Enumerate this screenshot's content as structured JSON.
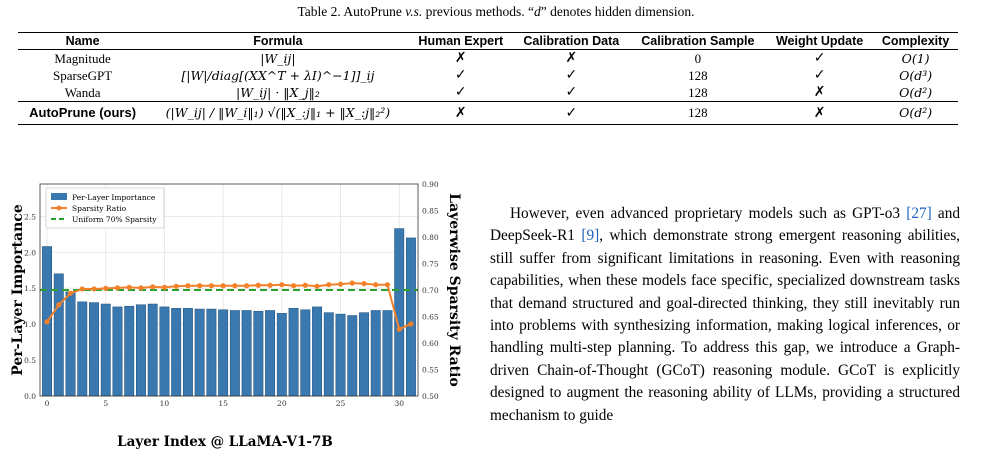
{
  "caption": {
    "label": "Table 2. AutoPrune ",
    "italic": "v.s.",
    "rest": " previous methods. “",
    "d": "d",
    "end": "” denotes hidden dimension."
  },
  "table": {
    "headers": [
      "Name",
      "Formula",
      "Human Expert",
      "Calibration Data",
      "Calibration Sample",
      "Weight Update",
      "Complexity"
    ],
    "rows": [
      {
        "name": "Magnitude",
        "formula": "|W_ij|",
        "human": "✗",
        "calib": "✗",
        "sample": "0",
        "update": "✓",
        "complexity": "O(1)"
      },
      {
        "name": "SparseGPT",
        "formula": "[|W|/diag[(XX^T + λI)^−1]]_ij",
        "human": "✓",
        "calib": "✓",
        "sample": "128",
        "update": "✓",
        "complexity": "O(d³)"
      },
      {
        "name": "Wanda",
        "formula": "|W_ij| · ‖X_j‖₂",
        "human": "✓",
        "calib": "✓",
        "sample": "128",
        "update": "✗",
        "complexity": "O(d²)"
      },
      {
        "name": "AutoPrune (ours)",
        "formula": "(|W_ij| / ‖W_i‖₁) √(‖X_:j‖₁ + ‖X_:j‖₂²)",
        "human": "✗",
        "calib": "✓",
        "sample": "128",
        "update": "✗",
        "complexity": "O(d²)"
      }
    ]
  },
  "chart_data": {
    "type": "bar",
    "xlabel": "Layer Index @ LLaMA-V1-7B",
    "ylabel": "Per-Layer Importance",
    "y2label": "Layerwise Sparsity Ratio",
    "x": [
      0,
      1,
      2,
      3,
      4,
      5,
      6,
      7,
      8,
      9,
      10,
      11,
      12,
      13,
      14,
      15,
      16,
      17,
      18,
      19,
      20,
      21,
      22,
      23,
      24,
      25,
      26,
      27,
      28,
      29,
      30,
      31
    ],
    "xticks": [
      0,
      5,
      10,
      15,
      20,
      25,
      30
    ],
    "ylim": [
      0,
      2.95
    ],
    "yticks": [
      0.0,
      0.5,
      1.0,
      1.5,
      2.0,
      2.5
    ],
    "y2lim": [
      0.5,
      0.9
    ],
    "y2ticks": [
      0.5,
      0.55,
      0.6,
      0.65,
      0.7,
      0.75,
      0.8,
      0.85,
      0.9
    ],
    "series": [
      {
        "name": "Per-Layer Importance",
        "kind": "bar",
        "axis": "left",
        "color": "#3a78b0",
        "values": [
          2.08,
          1.7,
          1.45,
          1.31,
          1.3,
          1.28,
          1.24,
          1.25,
          1.27,
          1.28,
          1.24,
          1.22,
          1.22,
          1.21,
          1.21,
          1.2,
          1.19,
          1.19,
          1.18,
          1.19,
          1.15,
          1.22,
          1.2,
          1.24,
          1.16,
          1.14,
          1.12,
          1.16,
          1.19,
          1.19,
          2.33,
          2.2
        ]
      },
      {
        "name": "Sparsity Ratio",
        "kind": "line",
        "axis": "right",
        "color": "#f2812a",
        "values": [
          0.64,
          0.672,
          0.694,
          0.702,
          0.702,
          0.703,
          0.704,
          0.705,
          0.704,
          0.706,
          0.705,
          0.707,
          0.708,
          0.708,
          0.708,
          0.708,
          0.708,
          0.708,
          0.709,
          0.709,
          0.71,
          0.708,
          0.709,
          0.707,
          0.71,
          0.711,
          0.713,
          0.712,
          0.71,
          0.71,
          0.626,
          0.636
        ]
      },
      {
        "name": "Uniform 70% Sparsity",
        "kind": "hline",
        "axis": "right",
        "color": "#2ca02c",
        "value": 0.7
      }
    ],
    "grid": true,
    "legend": "top-left"
  },
  "body": {
    "t1": "However, even advanced proprietary models such as GPT-o3 ",
    "r1": "[27]",
    "t2": " and DeepSeek-R1 ",
    "r2": "[9]",
    "t3": ", which demonstrate strong emergent reasoning abilities, still suffer from significant limitations in reasoning. Even with reasoning capabilities, when these models face specific, specialized downstream tasks that demand structured and goal-directed thinking, they still inevitably run into problems with synthesizing information, making logical inferences, or handling multi-step planning. To address this gap, we introduce a Graph-driven Chain-of-Thought (GCoT) reasoning module. GCoT is explicitly designed to augment the reasoning ability of LLMs, providing a structured mechanism to guide"
  }
}
